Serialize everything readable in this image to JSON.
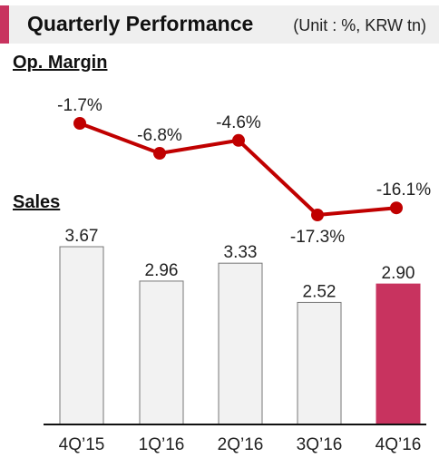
{
  "header": {
    "title": "Quarterly Performance",
    "unit": "(Unit : %, KRW tn)",
    "accent_color": "#c8335f"
  },
  "chart_data": {
    "type": "bar+line",
    "categories": [
      "4Q’15",
      "1Q’16",
      "2Q’16",
      "3Q’16",
      "4Q’16"
    ],
    "line": {
      "label": "Op. Margin",
      "unit": "%",
      "values": [
        -1.7,
        -6.8,
        -4.6,
        -17.3,
        -16.1
      ],
      "value_labels": [
        "-1.7%",
        "-6.8%",
        "-4.6%",
        "-17.3%",
        "-16.1%"
      ],
      "color": "#c00000"
    },
    "bars": {
      "label": "Sales",
      "unit": "KRW tn",
      "values": [
        3.67,
        2.96,
        3.33,
        2.52,
        2.9
      ],
      "value_labels": [
        "3.67",
        "2.96",
        "3.33",
        "2.52",
        "2.90"
      ],
      "fill_color": "#f2f2f2",
      "highlight_index": 4,
      "highlight_color": "#c8335f"
    },
    "legend": "none",
    "grid": false
  }
}
